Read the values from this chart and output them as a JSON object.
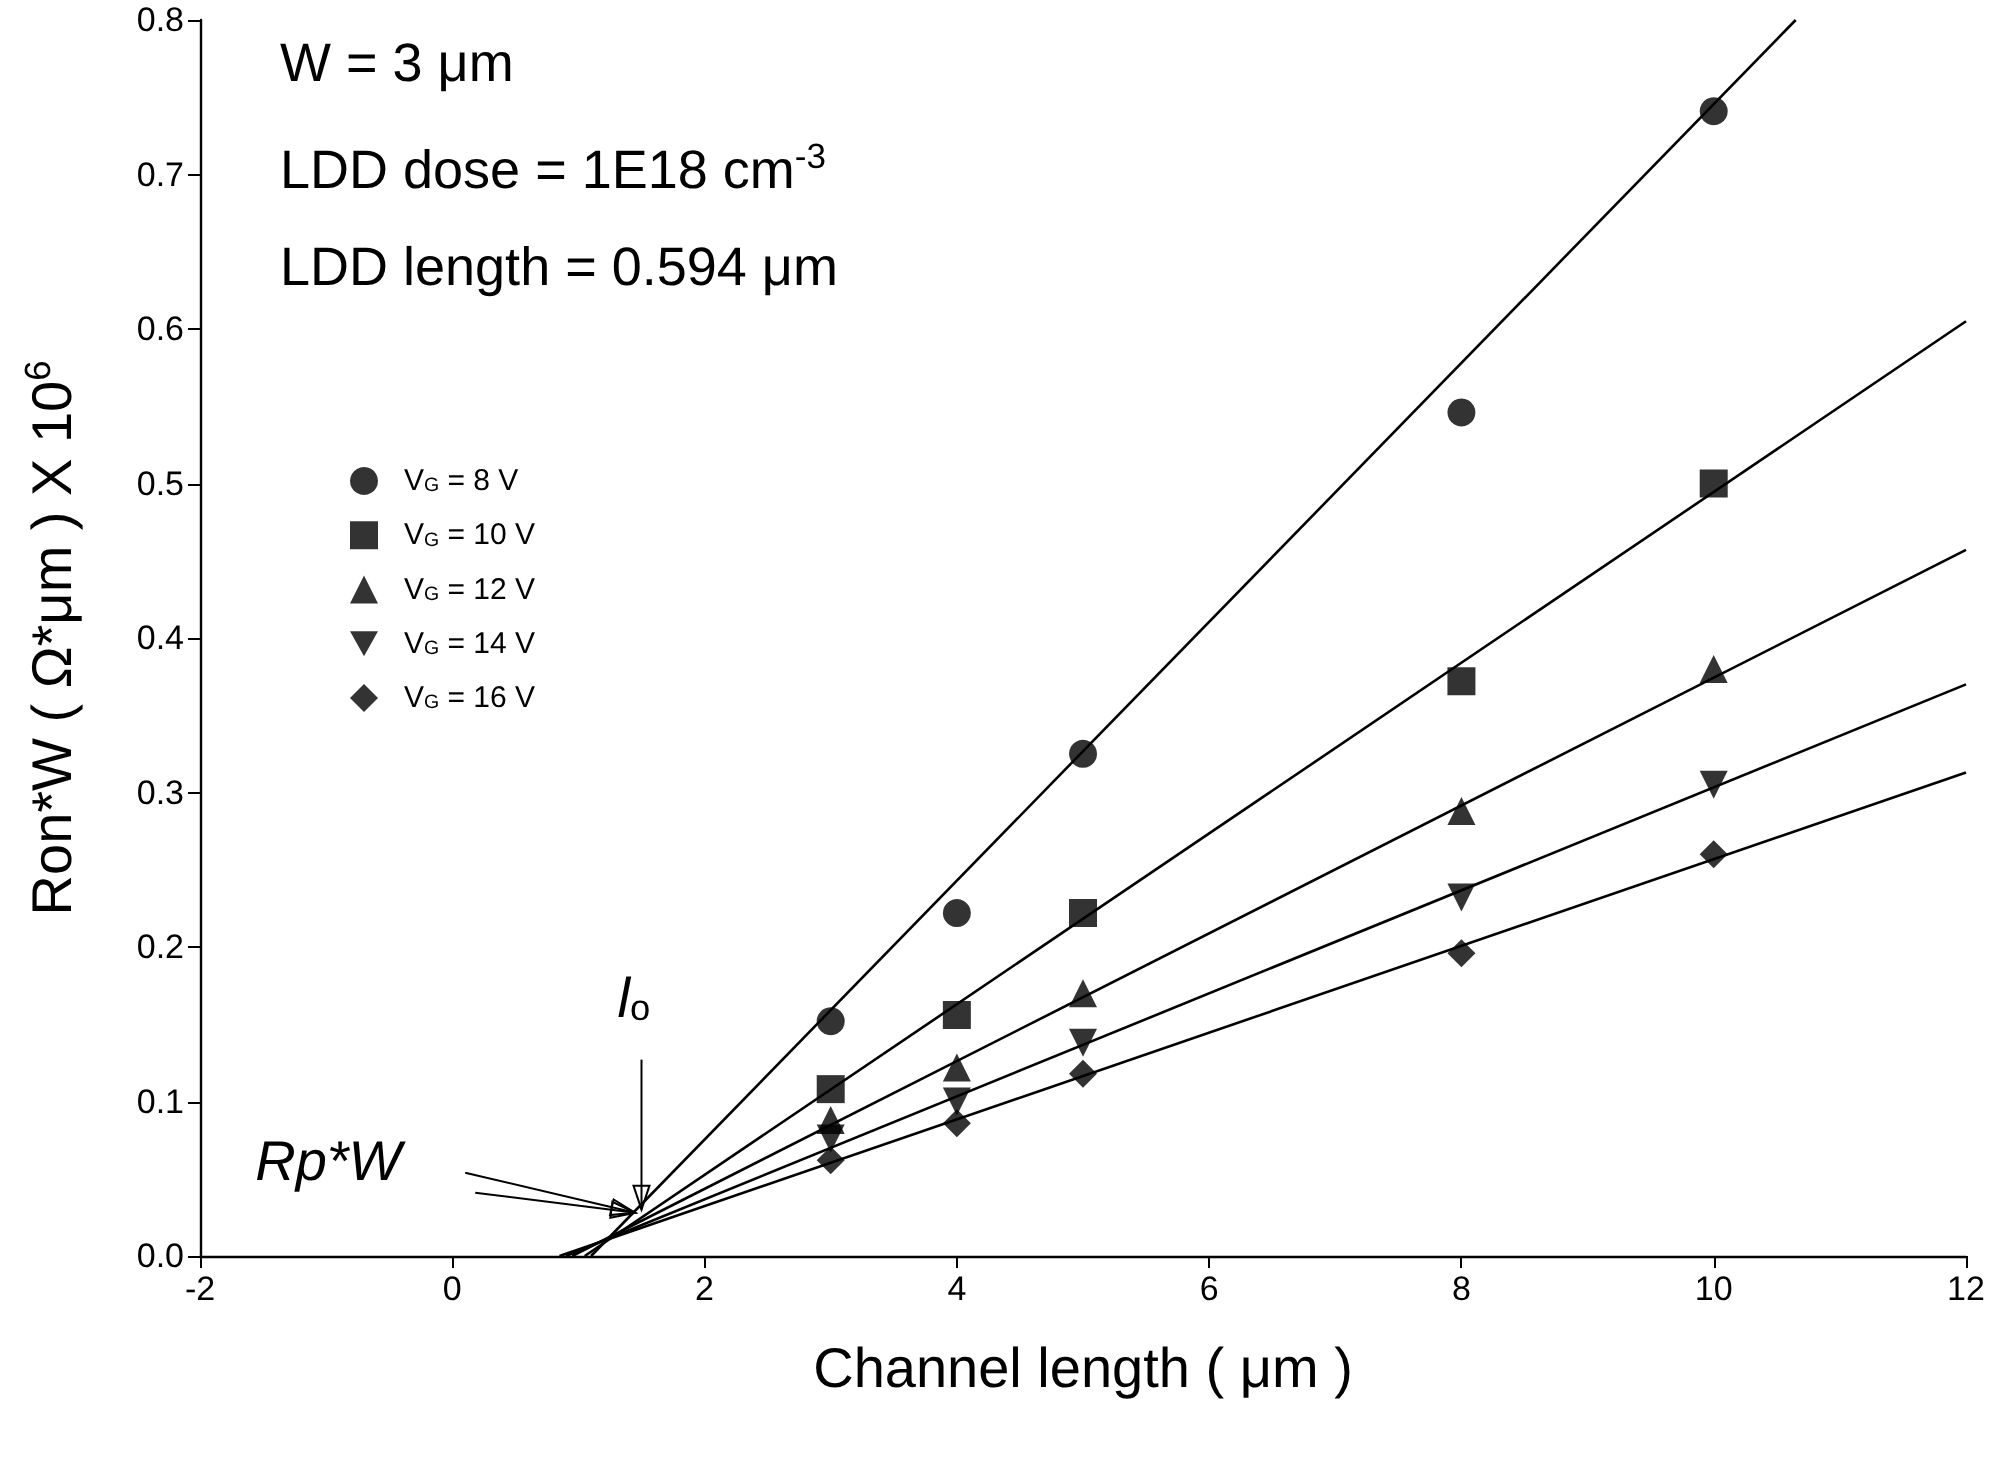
{
  "chart_data": {
    "type": "scatter",
    "xlabel": "Channel length ( μm )",
    "ylabel": "Ron*W ( Ω*μm ) X 10$^{6}$",
    "xlim": [
      -2,
      12
    ],
    "xticks": [
      -2,
      0,
      2,
      4,
      6,
      8,
      10,
      12
    ],
    "ylim": [
      0,
      0.8
    ],
    "yticks": [
      {
        "value": 0,
        "label": "0.0"
      },
      {
        "value": 0.1,
        "label": "0.1"
      },
      {
        "value": 0.2,
        "label": "0.2"
      },
      {
        "value": 0.3,
        "label": "0.3"
      },
      {
        "value": 0.4,
        "label": "0.4"
      },
      {
        "value": 0.5,
        "label": "0.5"
      },
      {
        "value": 0.6,
        "label": "0.6"
      },
      {
        "value": 0.7,
        "label": "0.7"
      },
      {
        "value": 0.8,
        "label": "0.8"
      }
    ],
    "grid": false,
    "legend": "top left",
    "x": [
      3,
      4,
      5,
      8,
      10
    ],
    "series": [
      {
        "name": "V$_{G}$ = 8 V",
        "color": "#000000",
        "marker": "circle",
        "values": [
          0.152,
          0.222,
          0.325,
          0.546,
          0.741
        ]
      },
      {
        "name": "V$_{G}$ = 10 V",
        "color": "#000000",
        "marker": "square",
        "values": [
          0.108,
          0.156,
          0.222,
          0.372,
          0.5
        ]
      },
      {
        "name": "V$_{G}$ = 12 V",
        "color": "#000000",
        "marker": "triangle",
        "values": [
          0.088,
          0.122,
          0.17,
          0.288,
          0.38
        ]
      },
      {
        "name": "V$_{G}$ = 14 V",
        "color": "#000000",
        "marker": "triangle-down",
        "values": [
          0.076,
          0.1,
          0.138,
          0.232,
          0.305
        ]
      },
      {
        "name": "V$_{G}$ = 16 V",
        "color": "#000000",
        "marker": "diamond",
        "values": [
          0.062,
          0.086,
          0.118,
          0.196,
          0.26
        ]
      },
      {
        "type": "line",
        "color": "#000000",
        "marker": "none",
        "x": [
          1.1,
          10.65
        ],
        "values": [
          0,
          0.8
        ]
      },
      {
        "type": "line",
        "color": "#000000",
        "marker": "none",
        "x": [
          1.05,
          12
        ],
        "values": [
          0,
          0.605
        ]
      },
      {
        "type": "line",
        "color": "#000000",
        "marker": "none",
        "x": [
          0.95,
          12
        ],
        "values": [
          0,
          0.457
        ]
      },
      {
        "type": "line",
        "color": "#000000",
        "marker": "none",
        "x": [
          0.9,
          12
        ],
        "values": [
          0,
          0.37
        ]
      },
      {
        "type": "line",
        "color": "#000000",
        "marker": "none",
        "x": [
          0.85,
          12
        ],
        "values": [
          0,
          0.313
        ]
      }
    ],
    "annotations": [
      "W = 3 μm",
      "LDD dose = 1E18 cm$^{-3}$",
      "LDD length = 0.594 μm",
      {
        "text": "l$_{o}$",
        "x": 1.5,
        "y": 0.03
      },
      {
        "text": "Rp*W",
        "x": 1.45,
        "y": 0.028
      }
    ]
  }
}
